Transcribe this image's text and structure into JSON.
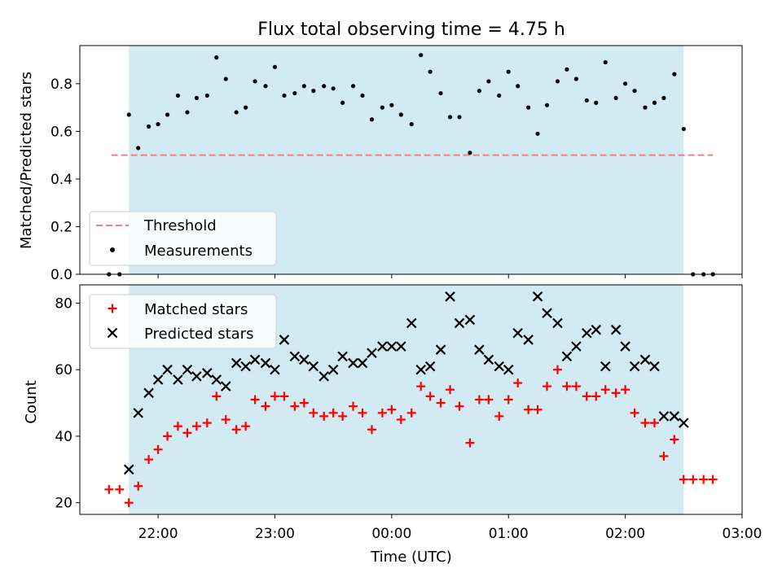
{
  "chart_data": [
    {
      "type": "scatter",
      "title": "Flux total observing time = 4.75 h",
      "xlabel": "",
      "ylabel": "Matched/Predicted stars",
      "ylim": [
        0,
        0.96
      ],
      "yticks": [
        "0.0",
        "0.2",
        "0.4",
        "0.6",
        "0.8"
      ],
      "x_format": "hour offset from 00:00 UTC (negative = previous day)",
      "xlim": [
        -2.67,
        3.0
      ],
      "shaded_interval": {
        "from": -2.25,
        "to": 2.5,
        "color": "#add8e6"
      },
      "legend_position": "lower-left",
      "threshold": {
        "name": "Threshold",
        "value": 0.5,
        "from": -2.4,
        "to": 2.75,
        "color": "#f08080"
      },
      "series": [
        {
          "name": "Measurements",
          "color": "#000000",
          "points": [
            [
              -2.42,
              0.0
            ],
            [
              -2.33,
              0.0
            ],
            [
              -2.25,
              0.67
            ],
            [
              -2.17,
              0.53
            ],
            [
              -2.08,
              0.62
            ],
            [
              -2.0,
              0.63
            ],
            [
              -1.92,
              0.67
            ],
            [
              -1.83,
              0.75
            ],
            [
              -1.75,
              0.68
            ],
            [
              -1.67,
              0.74
            ],
            [
              -1.58,
              0.75
            ],
            [
              -1.5,
              0.91
            ],
            [
              -1.42,
              0.82
            ],
            [
              -1.33,
              0.68
            ],
            [
              -1.25,
              0.7
            ],
            [
              -1.17,
              0.81
            ],
            [
              -1.08,
              0.79
            ],
            [
              -1.0,
              0.87
            ],
            [
              -0.92,
              0.75
            ],
            [
              -0.83,
              0.76
            ],
            [
              -0.75,
              0.79
            ],
            [
              -0.67,
              0.77
            ],
            [
              -0.58,
              0.79
            ],
            [
              -0.5,
              0.78
            ],
            [
              -0.42,
              0.72
            ],
            [
              -0.33,
              0.79
            ],
            [
              -0.25,
              0.75
            ],
            [
              -0.17,
              0.65
            ],
            [
              -0.08,
              0.7
            ],
            [
              0.0,
              0.71
            ],
            [
              0.08,
              0.67
            ],
            [
              0.17,
              0.63
            ],
            [
              0.25,
              0.92
            ],
            [
              0.33,
              0.85
            ],
            [
              0.42,
              0.76
            ],
            [
              0.5,
              0.66
            ],
            [
              0.58,
              0.66
            ],
            [
              0.67,
              0.51
            ],
            [
              0.75,
              0.77
            ],
            [
              0.83,
              0.81
            ],
            [
              0.92,
              0.75
            ],
            [
              1.0,
              0.85
            ],
            [
              1.08,
              0.79
            ],
            [
              1.17,
              0.7
            ],
            [
              1.25,
              0.59
            ],
            [
              1.33,
              0.71
            ],
            [
              1.42,
              0.81
            ],
            [
              1.5,
              0.86
            ],
            [
              1.58,
              0.82
            ],
            [
              1.67,
              0.73
            ],
            [
              1.75,
              0.72
            ],
            [
              1.83,
              0.89
            ],
            [
              1.92,
              0.74
            ],
            [
              2.0,
              0.8
            ],
            [
              2.08,
              0.77
            ],
            [
              2.17,
              0.7
            ],
            [
              2.25,
              0.72
            ],
            [
              2.33,
              0.74
            ],
            [
              2.42,
              0.84
            ],
            [
              2.5,
              0.61
            ],
            [
              2.58,
              0.0
            ],
            [
              2.67,
              0.0
            ],
            [
              2.75,
              0.0
            ]
          ]
        }
      ]
    },
    {
      "type": "scatter",
      "title": "",
      "xlabel": "Time (UTC)",
      "ylabel": "Count",
      "ylim": [
        16.5,
        85.5
      ],
      "yticks": [
        "20",
        "40",
        "60",
        "80"
      ],
      "x_format": "hour offset from 00:00 UTC (negative = previous day)",
      "xlim": [
        -2.67,
        3.0
      ],
      "xticks": [
        {
          "x": -2,
          "label": "22:00"
        },
        {
          "x": -1,
          "label": "23:00"
        },
        {
          "x": 0,
          "label": "00:00"
        },
        {
          "x": 1,
          "label": "01:00"
        },
        {
          "x": 2,
          "label": "02:00"
        },
        {
          "x": 3,
          "label": "03:00"
        }
      ],
      "shaded_interval": {
        "from": -2.25,
        "to": 2.5,
        "color": "#add8e6"
      },
      "legend_position": "upper-left",
      "series": [
        {
          "name": "Matched stars",
          "marker": "plus",
          "color": "#ff0000",
          "points": [
            [
              -2.42,
              24
            ],
            [
              -2.33,
              24
            ],
            [
              -2.25,
              20
            ],
            [
              -2.17,
              25
            ],
            [
              -2.08,
              33
            ],
            [
              -2.0,
              36
            ],
            [
              -1.92,
              40
            ],
            [
              -1.83,
              43
            ],
            [
              -1.75,
              41
            ],
            [
              -1.67,
              43
            ],
            [
              -1.58,
              44
            ],
            [
              -1.5,
              52
            ],
            [
              -1.42,
              45
            ],
            [
              -1.33,
              42
            ],
            [
              -1.25,
              43
            ],
            [
              -1.17,
              51
            ],
            [
              -1.08,
              49
            ],
            [
              -1.0,
              52
            ],
            [
              -0.92,
              52
            ],
            [
              -0.83,
              49
            ],
            [
              -0.75,
              50
            ],
            [
              -0.67,
              47
            ],
            [
              -0.58,
              46
            ],
            [
              -0.5,
              47
            ],
            [
              -0.42,
              46
            ],
            [
              -0.33,
              49
            ],
            [
              -0.25,
              47
            ],
            [
              -0.17,
              42
            ],
            [
              -0.08,
              47
            ],
            [
              0.0,
              48
            ],
            [
              0.08,
              45
            ],
            [
              0.17,
              47
            ],
            [
              0.25,
              55
            ],
            [
              0.33,
              52
            ],
            [
              0.42,
              50
            ],
            [
              0.5,
              54
            ],
            [
              0.58,
              49
            ],
            [
              0.67,
              38
            ],
            [
              0.75,
              51
            ],
            [
              0.83,
              51
            ],
            [
              0.92,
              46
            ],
            [
              1.0,
              51
            ],
            [
              1.08,
              56
            ],
            [
              1.17,
              48
            ],
            [
              1.25,
              48
            ],
            [
              1.33,
              55
            ],
            [
              1.42,
              60
            ],
            [
              1.5,
              55
            ],
            [
              1.58,
              55
            ],
            [
              1.67,
              52
            ],
            [
              1.75,
              52
            ],
            [
              1.83,
              54
            ],
            [
              1.92,
              53
            ],
            [
              2.0,
              54
            ],
            [
              2.08,
              47
            ],
            [
              2.17,
              44
            ],
            [
              2.25,
              44
            ],
            [
              2.33,
              34
            ],
            [
              2.42,
              39
            ],
            [
              2.5,
              27
            ],
            [
              2.58,
              27
            ],
            [
              2.67,
              27
            ],
            [
              2.75,
              27
            ]
          ]
        },
        {
          "name": "Predicted stars",
          "marker": "x",
          "color": "#000000",
          "points": [
            [
              -2.25,
              30
            ],
            [
              -2.17,
              47
            ],
            [
              -2.08,
              53
            ],
            [
              -2.0,
              57
            ],
            [
              -1.92,
              60
            ],
            [
              -1.83,
              57
            ],
            [
              -1.75,
              60
            ],
            [
              -1.67,
              58
            ],
            [
              -1.58,
              59
            ],
            [
              -1.5,
              57
            ],
            [
              -1.42,
              55
            ],
            [
              -1.33,
              62
            ],
            [
              -1.25,
              61
            ],
            [
              -1.17,
              63
            ],
            [
              -1.08,
              62
            ],
            [
              -1.0,
              60
            ],
            [
              -0.92,
              69
            ],
            [
              -0.83,
              64
            ],
            [
              -0.75,
              63
            ],
            [
              -0.67,
              61
            ],
            [
              -0.58,
              58
            ],
            [
              -0.5,
              60
            ],
            [
              -0.42,
              64
            ],
            [
              -0.33,
              62
            ],
            [
              -0.25,
              62
            ],
            [
              -0.17,
              65
            ],
            [
              -0.08,
              67
            ],
            [
              0.0,
              67
            ],
            [
              0.08,
              67
            ],
            [
              0.17,
              74
            ],
            [
              0.25,
              60
            ],
            [
              0.33,
              61
            ],
            [
              0.42,
              66
            ],
            [
              0.5,
              82
            ],
            [
              0.58,
              74
            ],
            [
              0.67,
              75
            ],
            [
              0.75,
              66
            ],
            [
              0.83,
              63
            ],
            [
              0.92,
              61
            ],
            [
              1.0,
              60
            ],
            [
              1.08,
              71
            ],
            [
              1.17,
              69
            ],
            [
              1.25,
              82
            ],
            [
              1.33,
              77
            ],
            [
              1.42,
              74
            ],
            [
              1.5,
              64
            ],
            [
              1.58,
              67
            ],
            [
              1.67,
              71
            ],
            [
              1.75,
              72
            ],
            [
              1.83,
              61
            ],
            [
              1.92,
              72
            ],
            [
              2.0,
              67
            ],
            [
              2.08,
              61
            ],
            [
              2.17,
              63
            ],
            [
              2.25,
              61
            ],
            [
              2.33,
              46
            ],
            [
              2.42,
              46
            ],
            [
              2.5,
              44
            ]
          ]
        }
      ]
    }
  ]
}
